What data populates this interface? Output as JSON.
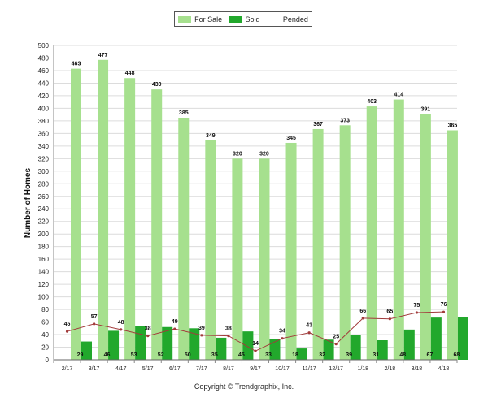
{
  "chart_data": {
    "type": "bar",
    "categories": [
      "2/17",
      "3/17",
      "4/17",
      "5/17",
      "6/17",
      "7/17",
      "8/17",
      "9/17",
      "10/17",
      "11/17",
      "12/17",
      "1/18",
      "2/18",
      "3/18",
      "4/18"
    ],
    "series": [
      {
        "name": "For Sale",
        "type": "bar",
        "color": "#a6e08e",
        "values": [
          463,
          477,
          448,
          430,
          385,
          349,
          320,
          320,
          345,
          367,
          373,
          403,
          414,
          391,
          365
        ]
      },
      {
        "name": "Sold",
        "type": "bar",
        "color": "#22a82c",
        "values": [
          29,
          46,
          53,
          52,
          50,
          35,
          45,
          33,
          18,
          32,
          39,
          31,
          48,
          67,
          68
        ]
      },
      {
        "name": "Pended",
        "type": "line",
        "color": "#a23b3b",
        "values": [
          45,
          57,
          48,
          38,
          49,
          39,
          38,
          14,
          34,
          43,
          25,
          66,
          65,
          75,
          76
        ]
      }
    ],
    "ylabel": "Number of Homes",
    "ylim": [
      0,
      500
    ],
    "yticks": [
      0,
      20,
      40,
      60,
      80,
      100,
      120,
      140,
      160,
      180,
      200,
      220,
      240,
      260,
      280,
      300,
      320,
      340,
      360,
      380,
      400,
      420,
      440,
      460,
      480,
      500
    ],
    "grid": true,
    "legend_position": "top-center"
  },
  "footer": {
    "copyright": "Copyright © Trendgraphix, Inc."
  }
}
